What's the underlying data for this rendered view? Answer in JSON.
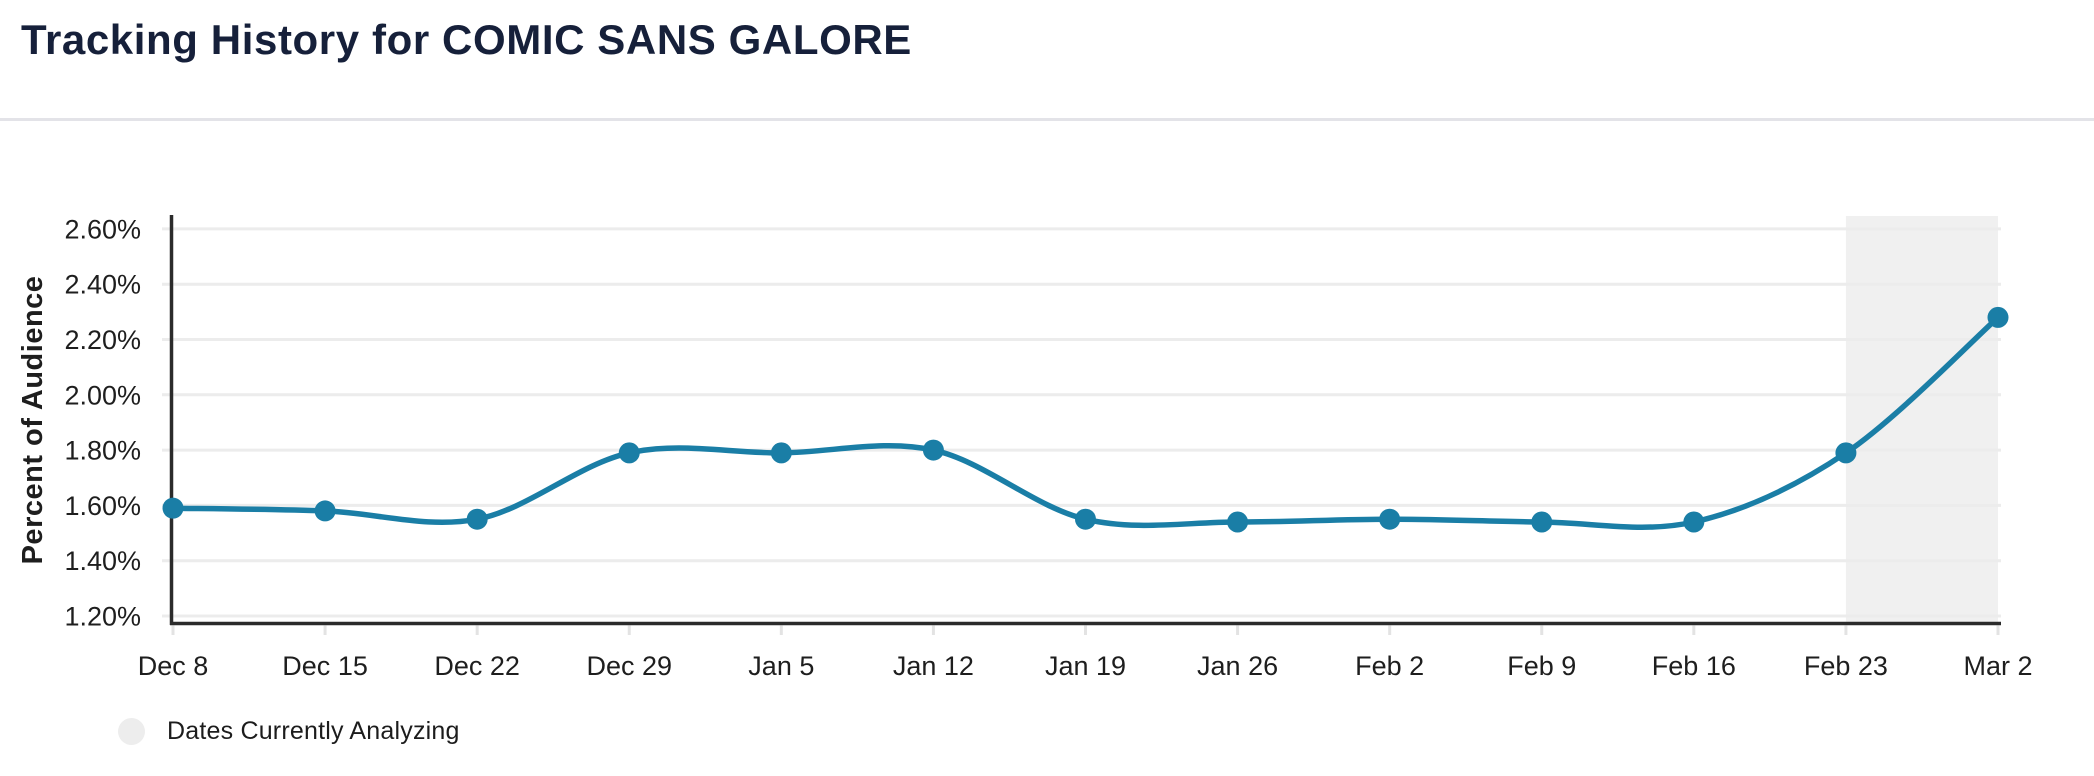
{
  "page": {
    "title": "Tracking History for COMIC SANS GALORE"
  },
  "legend": {
    "label": "Dates Currently Analyzing"
  },
  "chart_data": {
    "type": "line",
    "title": "Tracking History for COMIC SANS GALORE",
    "categories": [
      "Dec 8",
      "Dec 15",
      "Dec 22",
      "Dec 29",
      "Jan 5",
      "Jan 12",
      "Jan 19",
      "Jan 26",
      "Feb 2",
      "Feb 9",
      "Feb 16",
      "Feb 23",
      "Mar 2"
    ],
    "series": [
      {
        "name": "Percent of Audience",
        "values": [
          1.59,
          1.58,
          1.55,
          1.79,
          1.79,
          1.8,
          1.55,
          1.54,
          1.55,
          1.54,
          1.54,
          1.79,
          2.28
        ]
      }
    ],
    "xlabel": "",
    "ylabel": "Percent of Audience",
    "y_ticks": [
      2.6,
      2.4,
      2.2,
      2.0,
      1.8,
      1.6,
      1.4,
      1.2
    ],
    "y_tick_suffix": "%",
    "ylim": [
      1.2,
      2.65
    ],
    "grid": true,
    "line_smoothing": "catmull-rom",
    "markers": "circle",
    "legend_position": "bottom-left",
    "highlight_region": {
      "from": "Feb 23",
      "to": "Mar 2",
      "label": "Dates Currently Analyzing"
    },
    "colors": {
      "line": "#1a7ea6",
      "marker": "#1a7ea6",
      "highlight": "#f0f0f0",
      "grid": "#ececec",
      "axis": "#2b2b2b",
      "minor_tick": "#e3e3e3",
      "text": "#1e1e1e",
      "title": "#16203a",
      "legend_swatch": "#ededed",
      "divider": "#e3e3e8"
    }
  }
}
